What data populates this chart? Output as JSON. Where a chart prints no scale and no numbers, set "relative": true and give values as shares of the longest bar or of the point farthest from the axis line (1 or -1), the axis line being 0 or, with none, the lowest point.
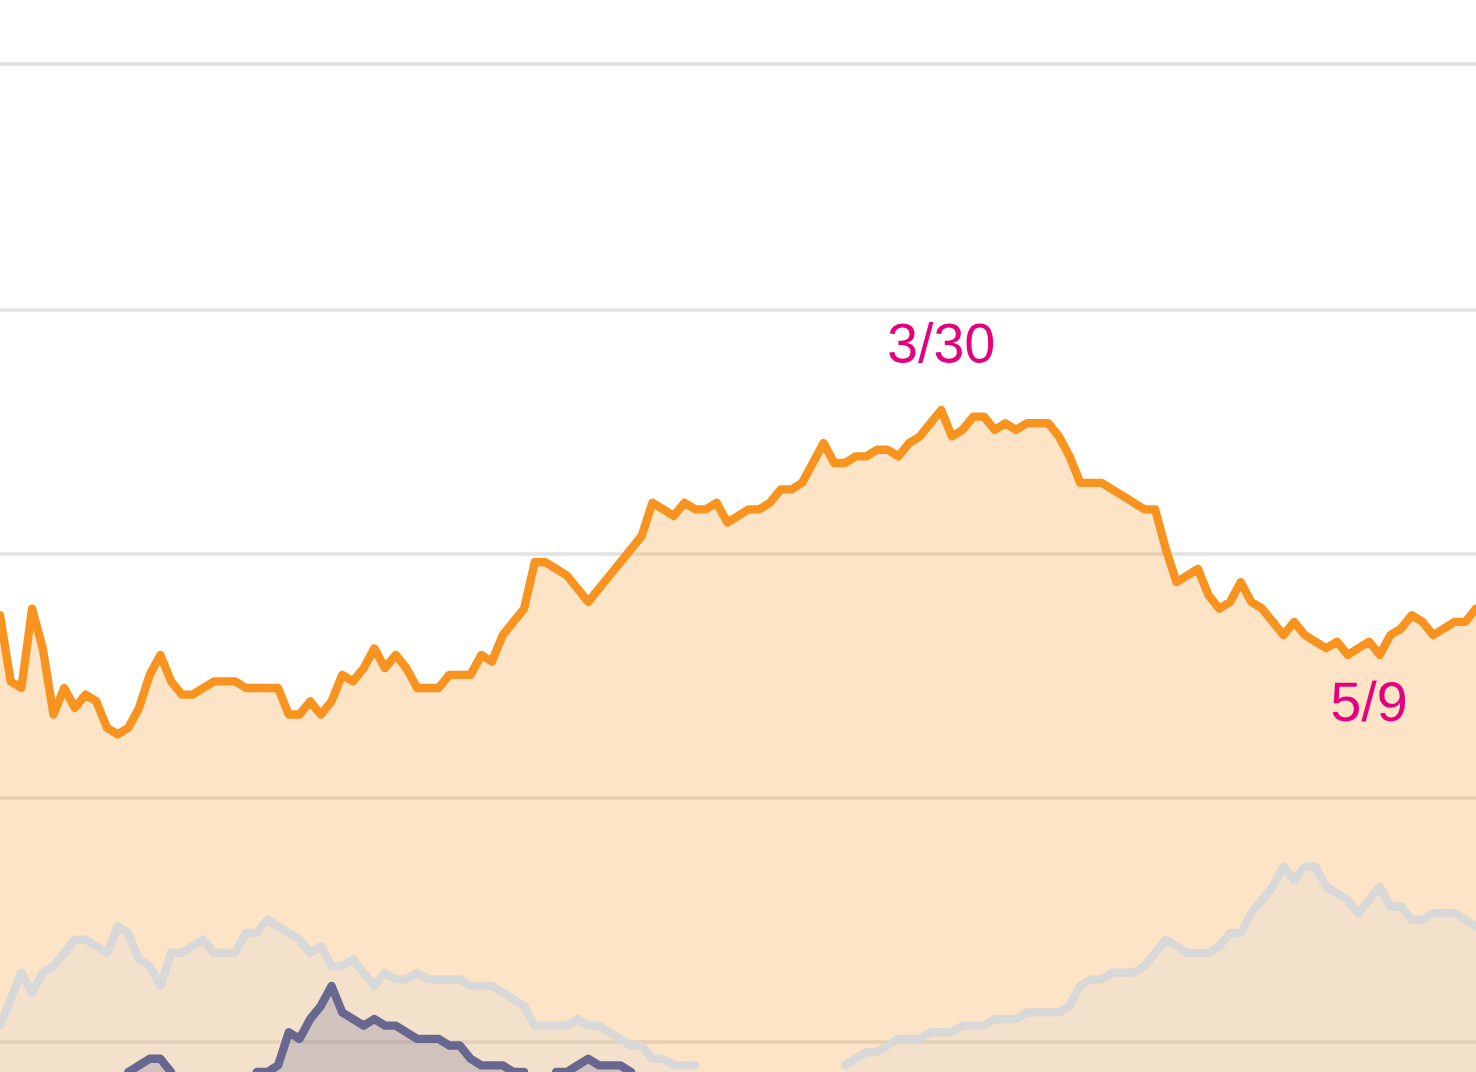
{
  "chart_data": {
    "type": "area",
    "relative": true,
    "grid": "y",
    "tick_labels": "x",
    "categories": [
      null,
      null,
      null,
      null,
      null,
      null,
      null,
      null,
      null,
      null,
      null,
      null,
      null,
      null,
      null,
      null,
      null,
      null,
      null,
      null,
      null,
      null,
      null,
      null,
      null,
      null,
      null,
      null,
      null,
      null,
      null,
      null,
      null,
      null,
      null,
      null,
      null,
      null,
      null,
      null,
      null,
      null,
      null,
      null,
      null,
      null,
      null,
      null,
      null,
      null,
      null,
      null,
      null,
      null,
      null,
      null,
      null,
      null,
      null,
      null,
      null,
      null,
      null,
      null,
      null,
      null,
      null,
      null,
      null,
      null,
      null,
      null,
      null,
      null,
      null,
      null,
      null,
      null,
      null,
      null,
      null,
      null,
      null,
      null,
      null,
      null,
      null,
      null,
      "3/30",
      null,
      null,
      null,
      null,
      null,
      null,
      null,
      null,
      null,
      null,
      null,
      null,
      null,
      null,
      null,
      null,
      null,
      null,
      null,
      null,
      null,
      null,
      null,
      null,
      null,
      null,
      null,
      null,
      null,
      null,
      null,
      null,
      null,
      null,
      null,
      null,
      null,
      null,
      null,
      "5/9",
      null,
      null,
      null,
      null,
      null,
      null,
      null,
      null,
      null,
      null
    ],
    "series": [
      {
        "color": "#f7931e",
        "values": [
          0.69,
          0.59,
          0.58,
          0.7,
          0.64,
          0.54,
          0.58,
          0.55,
          0.57,
          0.56,
          0.52,
          0.51,
          0.52,
          0.55,
          0.6,
          0.63,
          0.59,
          0.57,
          0.57,
          0.58,
          0.59,
          0.59,
          0.59,
          0.58,
          0.58,
          0.58,
          0.58,
          0.54,
          0.54,
          0.56,
          0.54,
          0.56,
          0.6,
          0.59,
          0.61,
          0.64,
          0.61,
          0.63,
          0.61,
          0.58,
          0.58,
          0.58,
          0.6,
          0.6,
          0.6,
          0.63,
          0.62,
          0.66,
          0.68,
          0.7,
          0.77,
          0.77,
          0.76,
          0.75,
          0.73,
          0.71,
          0.73,
          0.75,
          0.77,
          0.79,
          0.81,
          0.86,
          0.85,
          0.84,
          0.86,
          0.85,
          0.85,
          0.86,
          0.83,
          0.84,
          0.85,
          0.85,
          0.86,
          0.88,
          0.88,
          0.89,
          0.92,
          0.95,
          0.92,
          0.92,
          0.93,
          0.93,
          0.94,
          0.94,
          0.93,
          0.95,
          0.96,
          0.98,
          1.0,
          0.96,
          0.97,
          0.99,
          0.99,
          0.97,
          0.98,
          0.97,
          0.98,
          0.98,
          0.98,
          0.96,
          0.93,
          0.89,
          0.89,
          0.89,
          0.88,
          0.87,
          0.86,
          0.85,
          0.85,
          0.79,
          0.74,
          0.75,
          0.76,
          0.72,
          0.7,
          0.71,
          0.74,
          0.71,
          0.7,
          0.68,
          0.66,
          0.68,
          0.66,
          0.65,
          0.64,
          0.65,
          0.63,
          0.64,
          0.65,
          0.63,
          0.66,
          0.67,
          0.69,
          0.68,
          0.66,
          0.67,
          0.68,
          0.68,
          0.7
        ]
      },
      {
        "color": "#d8d8d8",
        "values": [
          0.07,
          0.11,
          0.15,
          0.12,
          0.15,
          0.16,
          0.18,
          0.2,
          0.2,
          0.19,
          0.18,
          0.22,
          0.21,
          0.17,
          0.16,
          0.13,
          0.18,
          0.18,
          0.19,
          0.2,
          0.18,
          0.18,
          0.18,
          0.21,
          0.21,
          0.23,
          0.22,
          0.21,
          0.2,
          0.18,
          0.19,
          0.16,
          0.16,
          0.17,
          0.15,
          0.13,
          0.15,
          0.14,
          0.14,
          0.15,
          0.14,
          0.14,
          0.14,
          0.14,
          0.13,
          0.13,
          0.13,
          0.12,
          0.11,
          0.1,
          0.07,
          0.07,
          0.07,
          0.07,
          0.08,
          0.07,
          0.07,
          0.06,
          0.05,
          0.04,
          0.04,
          0.02,
          0.02,
          0.01,
          0.01,
          0.01,
          null,
          null,
          null,
          null,
          null,
          null,
          null,
          null,
          null,
          null,
          null,
          null,
          null,
          0.01,
          0.02,
          0.03,
          0.03,
          0.04,
          0.05,
          0.05,
          0.05,
          0.06,
          0.06,
          0.06,
          0.07,
          0.07,
          0.07,
          0.08,
          0.08,
          0.08,
          0.09,
          0.09,
          0.09,
          0.09,
          0.1,
          0.13,
          0.14,
          0.14,
          0.15,
          0.15,
          0.15,
          0.16,
          0.18,
          0.2,
          0.19,
          0.18,
          0.18,
          0.18,
          0.19,
          0.21,
          0.21,
          0.24,
          0.26,
          0.28,
          0.31,
          0.29,
          0.31,
          0.31,
          0.28,
          0.27,
          0.26,
          0.24,
          0.26,
          0.28,
          0.25,
          0.25,
          0.23,
          0.23,
          0.24,
          0.24,
          0.24,
          0.23,
          0.22
        ]
      },
      {
        "color": "#67678f",
        "values": [
          null,
          null,
          null,
          null,
          null,
          null,
          null,
          null,
          null,
          null,
          null,
          null,
          0.0,
          0.01,
          0.02,
          0.02,
          0.0,
          null,
          null,
          null,
          null,
          null,
          null,
          null,
          0.0,
          0.0,
          0.01,
          0.06,
          0.05,
          0.08,
          0.1,
          0.13,
          0.09,
          0.08,
          0.07,
          0.08,
          0.07,
          0.07,
          0.06,
          0.05,
          0.05,
          0.05,
          0.04,
          0.04,
          0.02,
          0.01,
          0.01,
          0.01,
          0.0,
          0.0,
          null,
          null,
          0.0,
          0.0,
          0.01,
          0.02,
          0.01,
          0.01,
          0.01,
          0.0,
          null,
          null,
          null,
          null,
          null,
          null,
          null,
          null,
          null,
          null,
          null,
          null,
          null,
          null,
          null,
          null,
          null,
          null,
          null,
          null,
          null,
          null,
          null,
          null,
          null,
          null,
          null,
          null,
          null,
          null,
          null,
          null,
          null,
          null,
          null,
          null,
          null,
          null,
          null,
          null,
          null,
          null,
          null,
          null,
          null,
          null,
          null,
          null,
          null,
          null,
          null,
          null,
          null,
          null,
          null,
          null,
          null,
          null,
          null,
          null,
          null,
          null,
          null,
          null,
          null,
          null,
          null,
          null,
          null,
          null,
          null,
          null,
          null,
          null,
          null,
          null,
          null,
          null,
          null
        ]
      }
    ]
  }
}
